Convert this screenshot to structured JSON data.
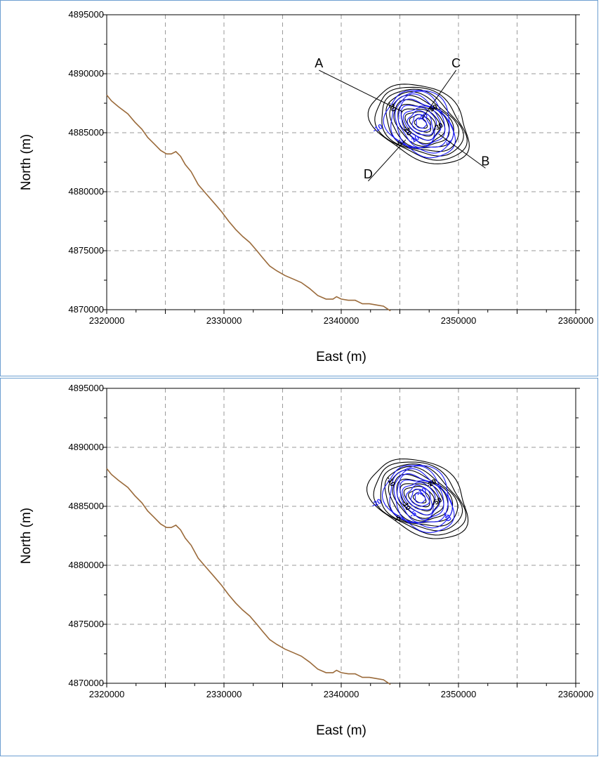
{
  "colors": {
    "coastline": "#9a6a3a",
    "grid": "#9a9a9a",
    "contour_primary": "#000000",
    "contour_secondary": "#1a1aff",
    "panel_border": "#6d9fd1"
  },
  "chart_data": [
    {
      "type": "line",
      "title": "",
      "xlabel": "East (m)",
      "ylabel": "North (m)",
      "xlim": [
        2320000,
        2360000
      ],
      "ylim": [
        4870000,
        4895000
      ],
      "x_ticks": [
        "2320000",
        "2330000",
        "2340000",
        "2350000",
        "2360000"
      ],
      "y_ticks": [
        "4870000",
        "4875000",
        "4880000",
        "4885000",
        "4890000",
        "4895000"
      ],
      "grid": true,
      "series": [
        {
          "kind": "coastline",
          "points": [
            [
              2320000,
              4888200
            ],
            [
              2320400,
              4887700
            ],
            [
              2321000,
              4887200
            ],
            [
              2321800,
              4886600
            ],
            [
              2322400,
              4885900
            ],
            [
              2323000,
              4885300
            ],
            [
              2323500,
              4884600
            ],
            [
              2324000,
              4884100
            ],
            [
              2324600,
              4883500
            ],
            [
              2325100,
              4883200
            ],
            [
              2325500,
              4883200
            ],
            [
              2325900,
              4883400
            ],
            [
              2326300,
              4883000
            ],
            [
              2326700,
              4882300
            ],
            [
              2327200,
              4881700
            ],
            [
              2327800,
              4880600
            ],
            [
              2328500,
              4879800
            ],
            [
              2329200,
              4879000
            ],
            [
              2329800,
              4878300
            ],
            [
              2330400,
              4877500
            ],
            [
              2331000,
              4876800
            ],
            [
              2331600,
              4876200
            ],
            [
              2332200,
              4875700
            ],
            [
              2332800,
              4875000
            ],
            [
              2333300,
              4874400
            ],
            [
              2333900,
              4873700
            ],
            [
              2334500,
              4873300
            ],
            [
              2335200,
              4872900
            ],
            [
              2335900,
              4872600
            ],
            [
              2336600,
              4872300
            ],
            [
              2337300,
              4871800
            ],
            [
              2338000,
              4871200
            ],
            [
              2338700,
              4870900
            ],
            [
              2339300,
              4870900
            ],
            [
              2339600,
              4871100
            ],
            [
              2340000,
              4870900
            ],
            [
              2340600,
              4870800
            ],
            [
              2341200,
              4870800
            ],
            [
              2341800,
              4870500
            ],
            [
              2342400,
              4870500
            ],
            [
              2343000,
              4870400
            ],
            [
              2343600,
              4870300
            ],
            [
              2344200,
              4869900
            ]
          ]
        }
      ],
      "contours": {
        "center": [
          2346800,
          4885800
        ],
        "levels_primary": [
          -5,
          -10,
          -20,
          -30,
          -40,
          -50
        ],
        "levels_secondary": [
          -5,
          -10,
          -20,
          -40,
          -50
        ],
        "labels": [
          "-20",
          "-10",
          "-30",
          "-5",
          "-50",
          "-40",
          "-20",
          "-10",
          "-5"
        ]
      },
      "annotations": [
        {
          "text": "A",
          "label_at": [
            2338100,
            4890300
          ],
          "point_at": [
            2345200,
            4886800
          ]
        },
        {
          "text": "C",
          "label_at": [
            2349800,
            4890300
          ],
          "point_at": [
            2346900,
            4886200
          ]
        },
        {
          "text": "B",
          "label_at": [
            2352300,
            4882000
          ],
          "point_at": [
            2348300,
            4884900
          ]
        },
        {
          "text": "D",
          "label_at": [
            2342300,
            4880900
          ],
          "point_at": [
            2345500,
            4884400
          ]
        }
      ]
    },
    {
      "type": "line",
      "title": "",
      "xlabel": "East (m)",
      "ylabel": "North (m)",
      "xlim": [
        2320000,
        2360000
      ],
      "ylim": [
        4870000,
        4895000
      ],
      "x_ticks": [
        "2320000",
        "2330000",
        "2340000",
        "2350000",
        "2360000"
      ],
      "y_ticks": [
        "4870000",
        "4875000",
        "4880000",
        "4885000",
        "4890000",
        "4895000"
      ],
      "grid": true,
      "series": [
        {
          "kind": "coastline",
          "points": [
            [
              2320000,
              4888200
            ],
            [
              2320400,
              4887700
            ],
            [
              2321000,
              4887200
            ],
            [
              2321800,
              4886600
            ],
            [
              2322400,
              4885900
            ],
            [
              2323000,
              4885300
            ],
            [
              2323500,
              4884600
            ],
            [
              2324000,
              4884100
            ],
            [
              2324600,
              4883500
            ],
            [
              2325100,
              4883200
            ],
            [
              2325500,
              4883200
            ],
            [
              2325900,
              4883400
            ],
            [
              2326300,
              4883000
            ],
            [
              2326700,
              4882300
            ],
            [
              2327200,
              4881700
            ],
            [
              2327800,
              4880600
            ],
            [
              2328500,
              4879800
            ],
            [
              2329200,
              4879000
            ],
            [
              2329800,
              4878300
            ],
            [
              2330400,
              4877500
            ],
            [
              2331000,
              4876800
            ],
            [
              2331600,
              4876200
            ],
            [
              2332200,
              4875700
            ],
            [
              2332800,
              4875000
            ],
            [
              2333300,
              4874400
            ],
            [
              2333900,
              4873700
            ],
            [
              2334500,
              4873300
            ],
            [
              2335200,
              4872900
            ],
            [
              2335900,
              4872600
            ],
            [
              2336600,
              4872300
            ],
            [
              2337300,
              4871800
            ],
            [
              2338000,
              4871200
            ],
            [
              2338700,
              4870900
            ],
            [
              2339300,
              4870900
            ],
            [
              2339600,
              4871100
            ],
            [
              2340000,
              4870900
            ],
            [
              2340600,
              4870800
            ],
            [
              2341200,
              4870800
            ],
            [
              2341800,
              4870500
            ],
            [
              2342400,
              4870500
            ],
            [
              2343000,
              4870400
            ],
            [
              2343600,
              4870300
            ],
            [
              2344200,
              4869900
            ]
          ]
        }
      ],
      "contours": {
        "center": [
          2346700,
          4885700
        ],
        "levels_primary": [
          -5,
          -10,
          -20,
          -30,
          -40,
          -50
        ],
        "levels_secondary": [
          -5,
          -10,
          -20,
          -40,
          -50
        ],
        "labels": [
          "-10",
          "-20",
          "-50",
          "-40",
          "-20",
          "-10",
          "-10",
          "-5",
          "-5"
        ]
      },
      "annotations": []
    }
  ]
}
